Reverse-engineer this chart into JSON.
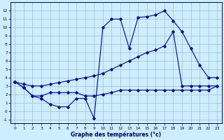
{
  "x_label": "Graphe des températures (°c)",
  "xlim": [
    -0.5,
    23.5
  ],
  "ylim": [
    -1.5,
    13
  ],
  "yticks": [
    -1,
    0,
    1,
    2,
    3,
    4,
    5,
    6,
    7,
    8,
    9,
    10,
    11,
    12
  ],
  "xticks": [
    0,
    1,
    2,
    3,
    4,
    5,
    6,
    7,
    8,
    9,
    10,
    11,
    12,
    13,
    14,
    15,
    16,
    17,
    18,
    19,
    20,
    21,
    22,
    23
  ],
  "background_color": "#cceeff",
  "line_color": "#0000aa",
  "grid_color": "#99bbcc",
  "line1_x": [
    0,
    1,
    2,
    3,
    4,
    5,
    6,
    7,
    8,
    9,
    10,
    11,
    12,
    13,
    14,
    15,
    16,
    17,
    18,
    19,
    20,
    21,
    22,
    23
  ],
  "line1_y": [
    3.5,
    2.8,
    1.8,
    1.5,
    0.8,
    0.5,
    0.5,
    1.5,
    1.5,
    -0.9,
    10.0,
    11.0,
    11.0,
    7.5,
    11.2,
    11.3,
    11.5,
    12.0,
    10.8,
    9.5,
    7.5,
    5.5,
    4.0,
    4.0
  ],
  "line2_x": [
    0,
    1,
    2,
    3,
    4,
    5,
    6,
    7,
    8,
    9,
    10,
    11,
    12,
    13,
    14,
    15,
    16,
    17,
    18,
    19,
    20,
    21,
    22,
    23
  ],
  "line2_y": [
    3.5,
    3.2,
    3.0,
    3.0,
    3.2,
    3.4,
    3.6,
    3.8,
    4.0,
    4.2,
    4.5,
    5.0,
    5.5,
    6.0,
    6.5,
    7.0,
    7.3,
    7.8,
    9.5,
    3.0,
    3.0,
    3.0,
    3.0,
    3.0
  ],
  "line3_x": [
    0,
    1,
    2,
    3,
    4,
    5,
    6,
    7,
    8,
    9,
    10,
    11,
    12,
    13,
    14,
    15,
    16,
    17,
    18,
    19,
    20,
    21,
    22,
    23
  ],
  "line3_y": [
    3.5,
    2.8,
    1.8,
    1.8,
    2.2,
    2.2,
    2.2,
    2.2,
    1.8,
    1.8,
    2.0,
    2.2,
    2.5,
    2.5,
    2.5,
    2.5,
    2.5,
    2.5,
    2.5,
    2.5,
    2.5,
    2.5,
    2.5,
    3.0
  ]
}
